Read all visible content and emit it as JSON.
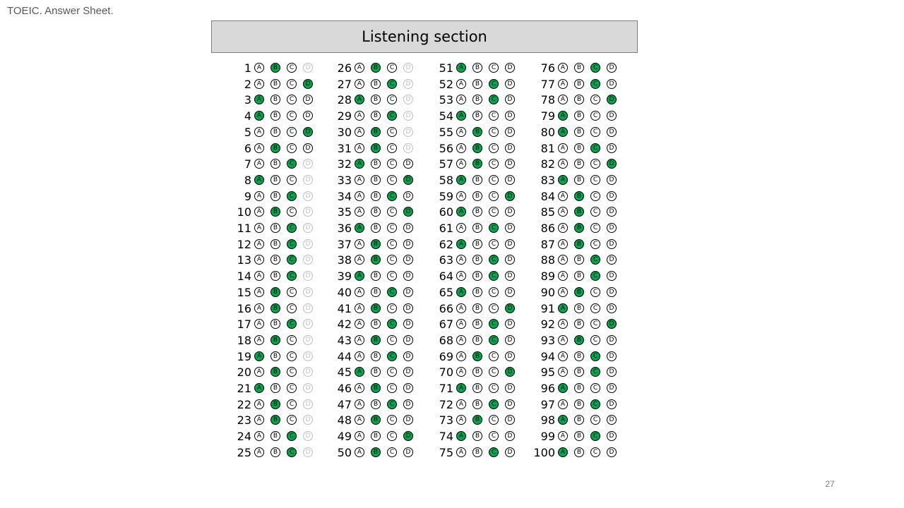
{
  "doc_title": "TOEIC. Answer Sheet.",
  "section_title": "Listening section",
  "page_number": "27",
  "choice_labels": [
    "A",
    "B",
    "C",
    "D"
  ],
  "colors": {
    "filled": "#00a550",
    "header_bg": "#d9d9d9"
  },
  "columns": [
    {
      "questions": [
        {
          "number": "1",
          "answer": "B",
          "faded": [
            "D"
          ]
        },
        {
          "number": "2",
          "answer": "D",
          "faded": []
        },
        {
          "number": "3",
          "answer": "A",
          "faded": []
        },
        {
          "number": "4",
          "answer": "A",
          "faded": []
        },
        {
          "number": "5",
          "answer": "D",
          "faded": []
        },
        {
          "number": "6",
          "answer": "B",
          "faded": []
        },
        {
          "number": "7",
          "answer": "C",
          "faded": [
            "D"
          ]
        },
        {
          "number": "8",
          "answer": "A",
          "faded": [
            "D"
          ]
        },
        {
          "number": "9",
          "answer": "C",
          "faded": [
            "D"
          ]
        },
        {
          "number": "10",
          "answer": "B",
          "faded": [
            "D"
          ]
        },
        {
          "number": "11",
          "answer": "C",
          "faded": [
            "D"
          ]
        },
        {
          "number": "12",
          "answer": "C",
          "faded": [
            "D"
          ]
        },
        {
          "number": "13",
          "answer": "C",
          "faded": [
            "D"
          ]
        },
        {
          "number": "14",
          "answer": "C",
          "faded": [
            "D"
          ]
        },
        {
          "number": "15",
          "answer": "B",
          "faded": [
            "D"
          ]
        },
        {
          "number": "16",
          "answer": "B",
          "faded": [
            "D"
          ]
        },
        {
          "number": "17",
          "answer": "C",
          "faded": [
            "D"
          ]
        },
        {
          "number": "18",
          "answer": "B",
          "faded": [
            "D"
          ]
        },
        {
          "number": "19",
          "answer": "A",
          "faded": [
            "D"
          ]
        },
        {
          "number": "20",
          "answer": "B",
          "faded": [
            "D"
          ]
        },
        {
          "number": "21",
          "answer": "A",
          "faded": [
            "D"
          ]
        },
        {
          "number": "22",
          "answer": "B",
          "faded": [
            "D"
          ]
        },
        {
          "number": "23",
          "answer": "B",
          "faded": [
            "D"
          ]
        },
        {
          "number": "24",
          "answer": "C",
          "faded": [
            "D"
          ]
        },
        {
          "number": "25",
          "answer": "C",
          "faded": [
            "D"
          ]
        }
      ]
    },
    {
      "questions": [
        {
          "number": "26",
          "answer": "B",
          "faded": [
            "D"
          ]
        },
        {
          "number": "27",
          "answer": "C",
          "faded": [
            "D"
          ]
        },
        {
          "number": "28",
          "answer": "A",
          "faded": [
            "D"
          ]
        },
        {
          "number": "29",
          "answer": "C",
          "faded": [
            "D"
          ]
        },
        {
          "number": "30",
          "answer": "B",
          "faded": [
            "D"
          ]
        },
        {
          "number": "31",
          "answer": "B",
          "faded": [
            "D"
          ]
        },
        {
          "number": "32",
          "answer": "A",
          "faded": []
        },
        {
          "number": "33",
          "answer": "D",
          "faded": []
        },
        {
          "number": "34",
          "answer": "C",
          "faded": []
        },
        {
          "number": "35",
          "answer": "D",
          "faded": []
        },
        {
          "number": "36",
          "answer": "A",
          "faded": []
        },
        {
          "number": "37",
          "answer": "B",
          "faded": []
        },
        {
          "number": "38",
          "answer": "B",
          "faded": []
        },
        {
          "number": "39",
          "answer": "A",
          "faded": []
        },
        {
          "number": "40",
          "answer": "C",
          "faded": []
        },
        {
          "number": "41",
          "answer": "B",
          "faded": []
        },
        {
          "number": "42",
          "answer": "C",
          "faded": []
        },
        {
          "number": "43",
          "answer": "B",
          "faded": []
        },
        {
          "number": "44",
          "answer": "C",
          "faded": []
        },
        {
          "number": "45",
          "answer": "A",
          "faded": []
        },
        {
          "number": "46",
          "answer": "B",
          "faded": []
        },
        {
          "number": "47",
          "answer": "C",
          "faded": []
        },
        {
          "number": "48",
          "answer": "B",
          "faded": []
        },
        {
          "number": "49",
          "answer": "D",
          "faded": []
        },
        {
          "number": "50",
          "answer": "B",
          "faded": []
        }
      ]
    },
    {
      "questions": [
        {
          "number": "51",
          "answer": "A",
          "faded": []
        },
        {
          "number": "52",
          "answer": "C",
          "faded": []
        },
        {
          "number": "53",
          "answer": "C",
          "faded": []
        },
        {
          "number": "54",
          "answer": "A",
          "faded": []
        },
        {
          "number": "55",
          "answer": "B",
          "faded": []
        },
        {
          "number": "56",
          "answer": "B",
          "faded": []
        },
        {
          "number": "57",
          "answer": "B",
          "faded": []
        },
        {
          "number": "58",
          "answer": "A",
          "faded": []
        },
        {
          "number": "59",
          "answer": "D",
          "faded": []
        },
        {
          "number": "60",
          "answer": "A",
          "faded": []
        },
        {
          "number": "61",
          "answer": "C",
          "faded": []
        },
        {
          "number": "62",
          "answer": "A",
          "faded": []
        },
        {
          "number": "63",
          "answer": "C",
          "faded": []
        },
        {
          "number": "64",
          "answer": "C",
          "faded": []
        },
        {
          "number": "65",
          "answer": "A",
          "faded": []
        },
        {
          "number": "66",
          "answer": "D",
          "faded": []
        },
        {
          "number": "67",
          "answer": "C",
          "faded": []
        },
        {
          "number": "68",
          "answer": "C",
          "faded": []
        },
        {
          "number": "69",
          "answer": "B",
          "faded": []
        },
        {
          "number": "70",
          "answer": "D",
          "faded": []
        },
        {
          "number": "71",
          "answer": "A",
          "faded": []
        },
        {
          "number": "72",
          "answer": "C",
          "faded": []
        },
        {
          "number": "73",
          "answer": "B",
          "faded": []
        },
        {
          "number": "74",
          "answer": "A",
          "faded": []
        },
        {
          "number": "75",
          "answer": "C",
          "faded": []
        }
      ]
    },
    {
      "questions": [
        {
          "number": "76",
          "answer": "C",
          "faded": []
        },
        {
          "number": "77",
          "answer": "C",
          "faded": []
        },
        {
          "number": "78",
          "answer": "D",
          "faded": []
        },
        {
          "number": "79",
          "answer": "A",
          "faded": []
        },
        {
          "number": "80",
          "answer": "A",
          "faded": []
        },
        {
          "number": "81",
          "answer": "C",
          "faded": []
        },
        {
          "number": "82",
          "answer": "D",
          "faded": []
        },
        {
          "number": "83",
          "answer": "A",
          "faded": []
        },
        {
          "number": "84",
          "answer": "B",
          "faded": []
        },
        {
          "number": "85",
          "answer": "B",
          "faded": []
        },
        {
          "number": "86",
          "answer": "B",
          "faded": []
        },
        {
          "number": "87",
          "answer": "B",
          "faded": []
        },
        {
          "number": "88",
          "answer": "C",
          "faded": []
        },
        {
          "number": "89",
          "answer": "C",
          "faded": []
        },
        {
          "number": "90",
          "answer": "B",
          "faded": []
        },
        {
          "number": "91",
          "answer": "A",
          "faded": []
        },
        {
          "number": "92",
          "answer": "D",
          "faded": []
        },
        {
          "number": "93",
          "answer": "B",
          "faded": []
        },
        {
          "number": "94",
          "answer": "C",
          "faded": []
        },
        {
          "number": "95",
          "answer": "C",
          "faded": []
        },
        {
          "number": "96",
          "answer": "A",
          "faded": []
        },
        {
          "number": "97",
          "answer": "C",
          "faded": []
        },
        {
          "number": "98",
          "answer": "A",
          "faded": []
        },
        {
          "number": "99",
          "answer": "C",
          "faded": []
        },
        {
          "number": "100",
          "answer": "A",
          "faded": []
        }
      ]
    }
  ]
}
